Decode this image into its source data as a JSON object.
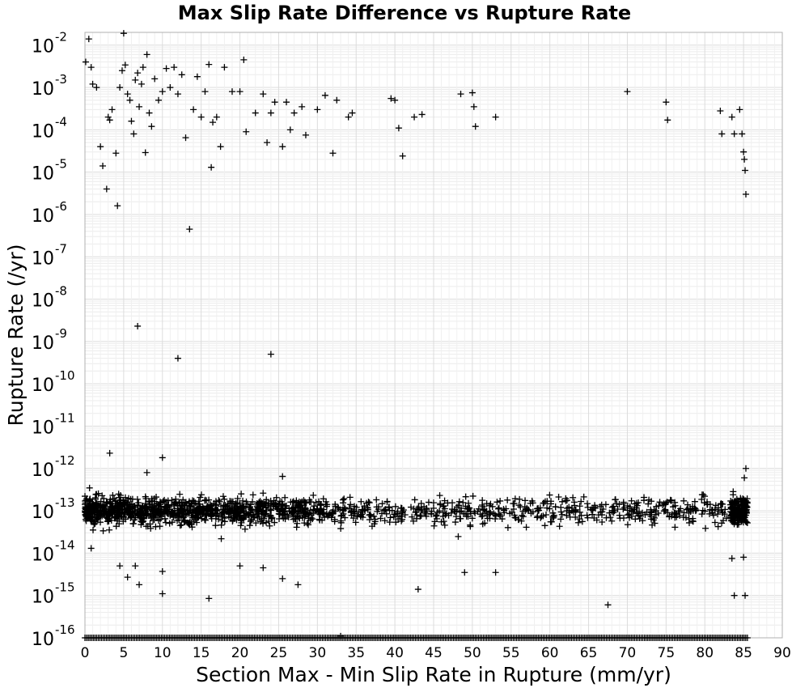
{
  "chart_data": {
    "type": "scatter",
    "title": "Max Slip Rate Difference vs Rupture Rate",
    "xlabel": "Section Max - Min Slip Rate in Rupture (mm/yr)",
    "ylabel": "Rupture Rate (/yr)",
    "xlim": [
      0,
      90
    ],
    "ylim": [
      1e-16,
      0.02
    ],
    "yscale": "log",
    "grid": true,
    "marker": "plus",
    "marker_color": "#000000",
    "x_ticks": [
      0,
      5,
      10,
      15,
      20,
      25,
      30,
      35,
      40,
      45,
      50,
      55,
      60,
      65,
      70,
      75,
      80,
      85,
      90
    ],
    "y_ticks": [
      {
        "base": "10",
        "exp": "-2",
        "value": 0.01
      },
      {
        "base": "10",
        "exp": "-3",
        "value": 0.001
      },
      {
        "base": "10",
        "exp": "-4",
        "value": 0.0001
      },
      {
        "base": "10",
        "exp": "-5",
        "value": 1e-05
      },
      {
        "base": "10",
        "exp": "-6",
        "value": 1e-06
      },
      {
        "base": "10",
        "exp": "-7",
        "value": 1e-07
      },
      {
        "base": "10",
        "exp": "-8",
        "value": 1e-08
      },
      {
        "base": "10",
        "exp": "-9",
        "value": 1e-09
      },
      {
        "base": "10",
        "exp": "-10",
        "value": 1e-10
      },
      {
        "base": "10",
        "exp": "-11",
        "value": 1e-11
      },
      {
        "base": "10",
        "exp": "-12",
        "value": 1e-12
      },
      {
        "base": "10",
        "exp": "-13",
        "value": 1e-13
      },
      {
        "base": "10",
        "exp": "-14",
        "value": 1e-14
      },
      {
        "base": "10",
        "exp": "-15",
        "value": 1e-15
      },
      {
        "base": "10",
        "exp": "-16",
        "value": 1e-16
      }
    ],
    "points": [
      [
        0.1,
        0.004
      ],
      [
        0.5,
        0.014
      ],
      [
        0.8,
        0.003
      ],
      [
        1,
        0.0012
      ],
      [
        1.5,
        0.001
      ],
      [
        2,
        4e-05
      ],
      [
        2.3,
        1.4e-05
      ],
      [
        2.8,
        4e-06
      ],
      [
        3,
        0.0002
      ],
      [
        3.2,
        0.00017
      ],
      [
        3.5,
        0.0003
      ],
      [
        4,
        2.8e-05
      ],
      [
        4.2,
        1.6e-06
      ],
      [
        4.5,
        0.001
      ],
      [
        4.8,
        0.0025
      ],
      [
        5,
        0.019
      ],
      [
        5.2,
        0.0034
      ],
      [
        5.5,
        0.0007
      ],
      [
        5.8,
        0.0005
      ],
      [
        6,
        0.00016
      ],
      [
        6.3,
        8e-05
      ],
      [
        6.5,
        0.0015
      ],
      [
        6.8,
        0.0022
      ],
      [
        7,
        0.00035
      ],
      [
        7.3,
        0.0012
      ],
      [
        7.5,
        0.003
      ],
      [
        7.8,
        2.9e-05
      ],
      [
        8,
        0.006
      ],
      [
        8.3,
        0.00025
      ],
      [
        8.6,
        0.00012
      ],
      [
        9,
        0.0016
      ],
      [
        9.5,
        0.0005
      ],
      [
        10,
        0.0008
      ],
      [
        10.5,
        0.0028
      ],
      [
        11,
        0.001
      ],
      [
        11.5,
        0.003
      ],
      [
        12,
        0.0007
      ],
      [
        12.5,
        0.002
      ],
      [
        13,
        6.5e-05
      ],
      [
        13.5,
        4.5e-07
      ],
      [
        14,
        0.0003
      ],
      [
        14.5,
        0.0018
      ],
      [
        15,
        0.0002
      ],
      [
        15.5,
        0.0008
      ],
      [
        16,
        0.0035
      ],
      [
        16.3,
        1.3e-05
      ],
      [
        16.5,
        0.00015
      ],
      [
        17,
        0.0002
      ],
      [
        17.5,
        4e-05
      ],
      [
        18,
        0.003
      ],
      [
        19,
        0.0008
      ],
      [
        20,
        0.0008
      ],
      [
        20.5,
        0.0045
      ],
      [
        20.8,
        9e-05
      ],
      [
        22,
        0.00025
      ],
      [
        23,
        0.0007
      ],
      [
        23.5,
        5e-05
      ],
      [
        24,
        0.00025
      ],
      [
        24.5,
        0.00045
      ],
      [
        25.5,
        4e-05
      ],
      [
        26.5,
        0.0001
      ],
      [
        26,
        0.00045
      ],
      [
        27,
        0.00025
      ],
      [
        28,
        0.00035
      ],
      [
        28.5,
        7.5e-05
      ],
      [
        30,
        0.0003
      ],
      [
        31,
        0.00065
      ],
      [
        32,
        2.8e-05
      ],
      [
        32.5,
        0.0005
      ],
      [
        34,
        0.0002
      ],
      [
        34.5,
        0.00025
      ],
      [
        39.5,
        0.00055
      ],
      [
        40,
        0.0005
      ],
      [
        40.5,
        0.00011
      ],
      [
        41,
        2.4e-05
      ],
      [
        42.5,
        0.0002
      ],
      [
        43.5,
        0.00023
      ],
      [
        48.5,
        0.0007
      ],
      [
        50,
        0.00075
      ],
      [
        50.2,
        0.00035
      ],
      [
        50.4,
        0.00012
      ],
      [
        53,
        0.0002
      ],
      [
        70,
        0.0008
      ],
      [
        75,
        0.00045
      ],
      [
        75.2,
        0.00017
      ],
      [
        82,
        0.00028
      ],
      [
        82.2,
        8e-05
      ],
      [
        83.5,
        0.0002
      ],
      [
        83.8,
        8e-05
      ],
      [
        84.5,
        0.0003
      ],
      [
        84.8,
        8e-05
      ],
      [
        85,
        3e-05
      ],
      [
        85.1,
        2e-05
      ],
      [
        85.2,
        1.1e-05
      ],
      [
        85.3,
        3e-06
      ],
      [
        6.8,
        2.3e-09
      ],
      [
        12,
        4e-10
      ],
      [
        24,
        5e-10
      ],
      [
        3.2,
        2.3e-12
      ],
      [
        8,
        8e-13
      ],
      [
        10,
        1.8e-12
      ],
      [
        25.5,
        6.5e-13
      ],
      [
        85.3,
        1e-12
      ],
      [
        85.1,
        6e-13
      ],
      [
        0.8,
        1.3e-14
      ],
      [
        4.5,
        5e-15
      ],
      [
        5.5,
        2.7e-15
      ],
      [
        6.5,
        5e-15
      ],
      [
        7,
        1.8e-15
      ],
      [
        10,
        1.1e-15
      ],
      [
        10,
        3.7e-15
      ],
      [
        16,
        8.5e-16
      ],
      [
        20,
        5e-15
      ],
      [
        23,
        4.5e-15
      ],
      [
        25.5,
        2.5e-15
      ],
      [
        27.5,
        1.8e-15
      ],
      [
        43,
        1.4e-15
      ],
      [
        49,
        3.5e-15
      ],
      [
        53,
        3.5e-15
      ],
      [
        67.5,
        6e-16
      ],
      [
        83.8,
        1e-15
      ],
      [
        85.2,
        1e-15
      ],
      [
        83.5,
        7.5e-15
      ],
      [
        85,
        8e-15
      ],
      [
        33,
        1.1e-16
      ]
    ],
    "dense_band": {
      "x_range": [
        0,
        85.5
      ],
      "y_center": 1e-13,
      "y_log_spread": 0.35,
      "count": 1800
    },
    "floor_row": {
      "x_range": [
        0,
        85.5
      ],
      "y": 1e-16,
      "count": 400
    }
  }
}
